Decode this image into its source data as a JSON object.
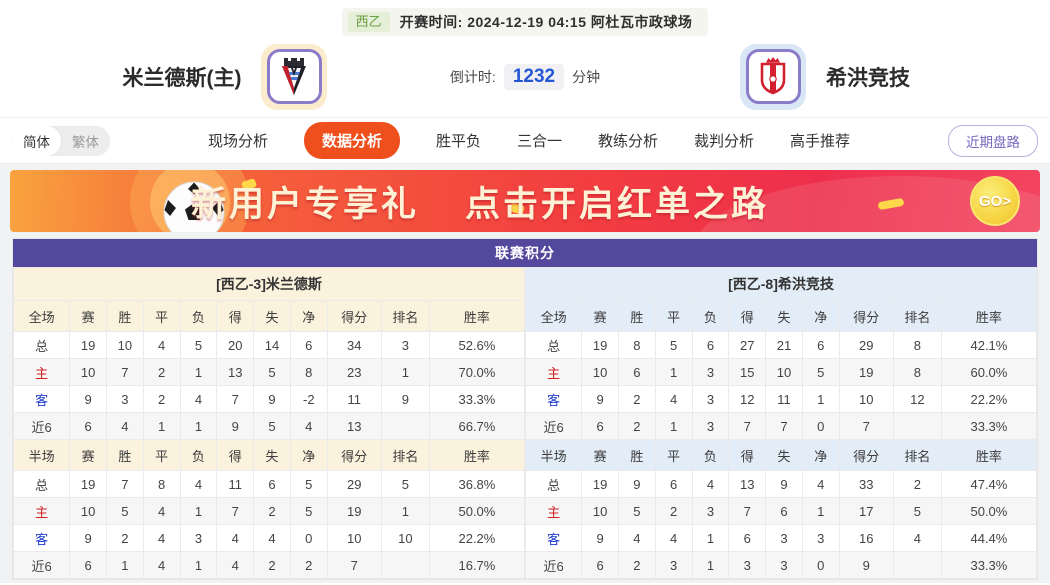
{
  "top_bar": {
    "league": "西乙",
    "kickoff_label": "开赛时间:",
    "kickoff_time": "2024-12-19 04:15",
    "venue": "阿杜瓦市政球场"
  },
  "match_header": {
    "home_team": "米兰德斯(主)",
    "away_team": "希洪竞技",
    "countdown_label": "倒计时:",
    "countdown_value": "1232",
    "countdown_unit": "分钟"
  },
  "nav": {
    "lang_simplified": "简体",
    "lang_traditional": "繁体",
    "tabs": [
      {
        "label": "现场分析",
        "active": false
      },
      {
        "label": "数据分析",
        "active": true
      },
      {
        "label": "胜平负",
        "active": false
      },
      {
        "label": "三合一",
        "active": false
      },
      {
        "label": "教练分析",
        "active": false
      },
      {
        "label": "裁判分析",
        "active": false
      },
      {
        "label": "高手推荐",
        "active": false
      }
    ],
    "recent_button": "近期盘路"
  },
  "banner": {
    "text_left": "新用户专享礼",
    "text_right": "点击开启红单之路",
    "go_label": "GO>"
  },
  "standings": {
    "title": "联赛积分",
    "sections": [
      {
        "team_header": "[西乙-3]米兰德斯",
        "blocks": [
          {
            "header": [
              "全场",
              "赛",
              "胜",
              "平",
              "负",
              "得",
              "失",
              "净",
              "得分",
              "排名",
              "胜率"
            ],
            "rows": [
              {
                "label": "总",
                "cls": "",
                "values": [
                  "19",
                  "10",
                  "4",
                  "5",
                  "20",
                  "14",
                  "6",
                  "34",
                  "3",
                  "52.6%"
                ]
              },
              {
                "label": "主",
                "cls": "home",
                "values": [
                  "10",
                  "7",
                  "2",
                  "1",
                  "13",
                  "5",
                  "8",
                  "23",
                  "1",
                  "70.0%"
                ]
              },
              {
                "label": "客",
                "cls": "away",
                "values": [
                  "9",
                  "3",
                  "2",
                  "4",
                  "7",
                  "9",
                  "-2",
                  "11",
                  "9",
                  "33.3%"
                ]
              },
              {
                "label": "近6",
                "cls": "",
                "values": [
                  "6",
                  "4",
                  "1",
                  "1",
                  "9",
                  "5",
                  "4",
                  "13",
                  "",
                  "66.7%"
                ]
              }
            ]
          },
          {
            "header": [
              "半场",
              "赛",
              "胜",
              "平",
              "负",
              "得",
              "失",
              "净",
              "得分",
              "排名",
              "胜率"
            ],
            "rows": [
              {
                "label": "总",
                "cls": "",
                "values": [
                  "19",
                  "7",
                  "8",
                  "4",
                  "11",
                  "6",
                  "5",
                  "29",
                  "5",
                  "36.8%"
                ]
              },
              {
                "label": "主",
                "cls": "home",
                "values": [
                  "10",
                  "5",
                  "4",
                  "1",
                  "7",
                  "2",
                  "5",
                  "19",
                  "1",
                  "50.0%"
                ]
              },
              {
                "label": "客",
                "cls": "away",
                "values": [
                  "9",
                  "2",
                  "4",
                  "3",
                  "4",
                  "4",
                  "0",
                  "10",
                  "10",
                  "22.2%"
                ]
              },
              {
                "label": "近6",
                "cls": "",
                "values": [
                  "6",
                  "1",
                  "4",
                  "1",
                  "4",
                  "2",
                  "2",
                  "7",
                  "",
                  "16.7%"
                ]
              }
            ]
          }
        ]
      },
      {
        "team_header": "[西乙-8]希洪竞技",
        "blocks": [
          {
            "header": [
              "全场",
              "赛",
              "胜",
              "平",
              "负",
              "得",
              "失",
              "净",
              "得分",
              "排名",
              "胜率"
            ],
            "rows": [
              {
                "label": "总",
                "cls": "",
                "values": [
                  "19",
                  "8",
                  "5",
                  "6",
                  "27",
                  "21",
                  "6",
                  "29",
                  "8",
                  "42.1%"
                ]
              },
              {
                "label": "主",
                "cls": "home",
                "values": [
                  "10",
                  "6",
                  "1",
                  "3",
                  "15",
                  "10",
                  "5",
                  "19",
                  "8",
                  "60.0%"
                ]
              },
              {
                "label": "客",
                "cls": "away",
                "values": [
                  "9",
                  "2",
                  "4",
                  "3",
                  "12",
                  "11",
                  "1",
                  "10",
                  "12",
                  "22.2%"
                ]
              },
              {
                "label": "近6",
                "cls": "",
                "values": [
                  "6",
                  "2",
                  "1",
                  "3",
                  "7",
                  "7",
                  "0",
                  "7",
                  "",
                  "33.3%"
                ]
              }
            ]
          },
          {
            "header": [
              "半场",
              "赛",
              "胜",
              "平",
              "负",
              "得",
              "失",
              "净",
              "得分",
              "排名",
              "胜率"
            ],
            "rows": [
              {
                "label": "总",
                "cls": "",
                "values": [
                  "19",
                  "9",
                  "6",
                  "4",
                  "13",
                  "9",
                  "4",
                  "33",
                  "2",
                  "47.4%"
                ]
              },
              {
                "label": "主",
                "cls": "home",
                "values": [
                  "10",
                  "5",
                  "2",
                  "3",
                  "7",
                  "6",
                  "1",
                  "17",
                  "5",
                  "50.0%"
                ]
              },
              {
                "label": "客",
                "cls": "away",
                "values": [
                  "9",
                  "4",
                  "4",
                  "1",
                  "6",
                  "3",
                  "3",
                  "16",
                  "4",
                  "44.4%"
                ]
              },
              {
                "label": "近6",
                "cls": "",
                "values": [
                  "6",
                  "2",
                  "3",
                  "1",
                  "3",
                  "3",
                  "0",
                  "9",
                  "",
                  "33.3%"
                ]
              }
            ]
          }
        ]
      }
    ]
  },
  "colors": {
    "accent_orange": "#ee4f1c",
    "title_purple": "#54489c",
    "home_section_bg": "#fbf2dd",
    "away_section_bg": "#e3edf7",
    "home_row_red": "#d21e1e",
    "away_row_blue": "#1e3bd2",
    "countdown_blue": "#2456d6",
    "league_green": "#6a9e3f",
    "recent_purple": "#7668c0"
  }
}
